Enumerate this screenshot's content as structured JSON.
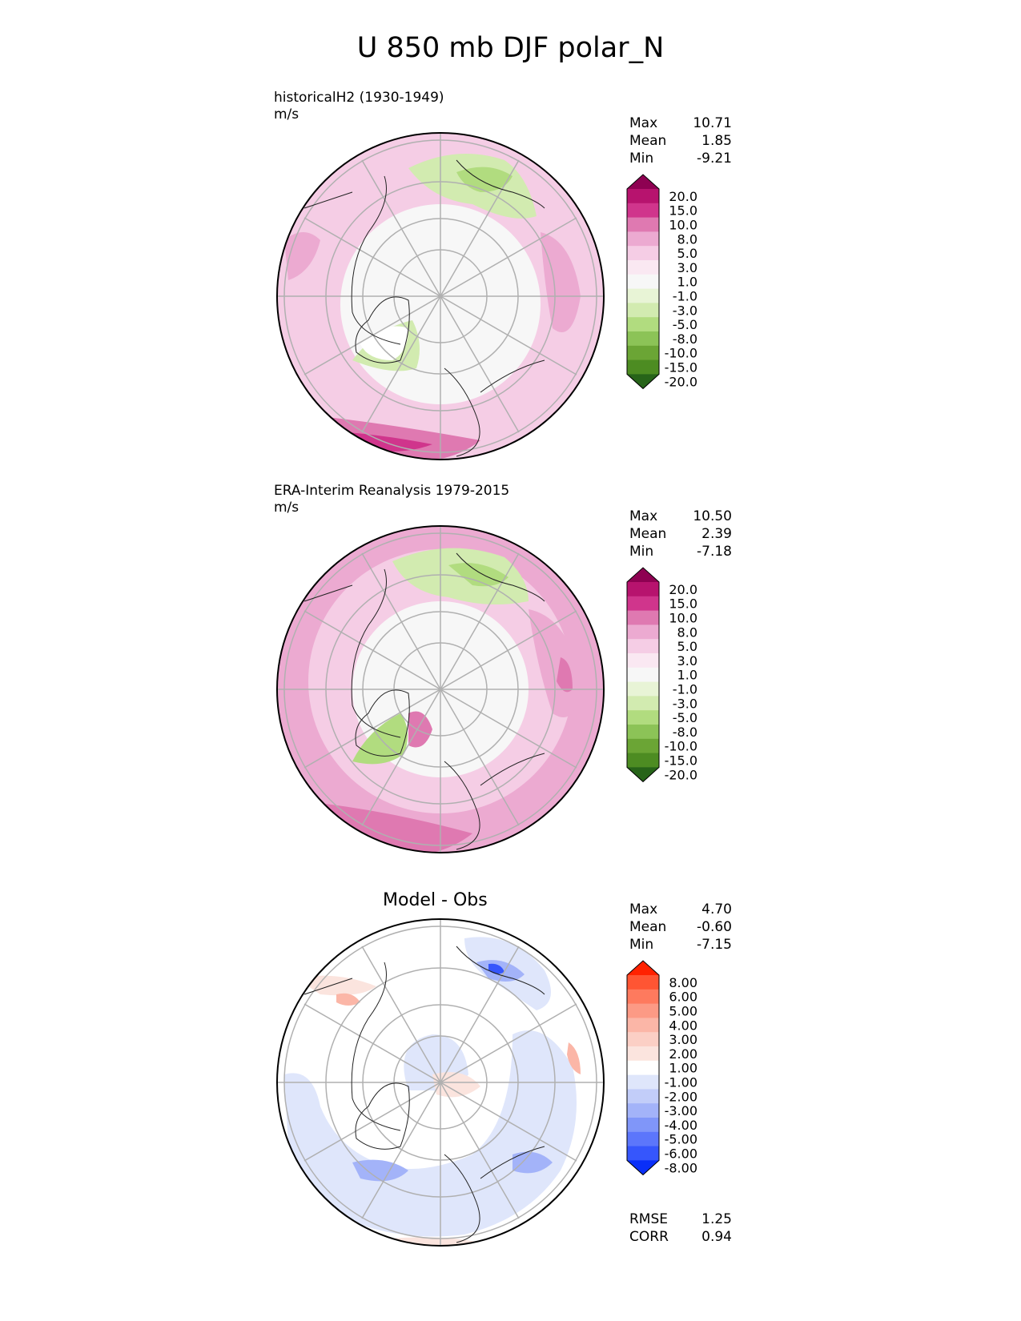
{
  "title": "U 850 mb DJF polar_N",
  "panels": [
    {
      "id": "test",
      "title_lines": [
        "historicalH2 (1930-1949)",
        "m/s"
      ],
      "stats": [
        {
          "label": "Max",
          "value": "10.71"
        },
        {
          "label": "Mean",
          "value": "1.85"
        },
        {
          "label": "Min",
          "value": "-9.21"
        }
      ],
      "colorbar": {
        "levels": [
          "20.0",
          "15.0",
          "10.0",
          "8.0",
          "5.0",
          "3.0",
          "1.0",
          "-1.0",
          "-3.0",
          "-5.0",
          "-8.0",
          "-10.0",
          "-15.0",
          "-20.0"
        ],
        "colors": [
          "#8e0152",
          "#b7136e",
          "#d0358c",
          "#df79b1",
          "#ecaad1",
          "#f5cde5",
          "#fae8f2",
          "#f7f7f7",
          "#e8f4d6",
          "#d2ebb0",
          "#b1dc7f",
          "#8cc357",
          "#6ba535",
          "#4d8c22",
          "#276419"
        ]
      }
    },
    {
      "id": "reference",
      "title_lines": [
        "ERA-Interim Reanalysis 1979-2015",
        "m/s"
      ],
      "stats": [
        {
          "label": "Max",
          "value": "10.50"
        },
        {
          "label": "Mean",
          "value": "2.39"
        },
        {
          "label": "Min",
          "value": "-7.18"
        }
      ],
      "colorbar": {
        "levels": [
          "20.0",
          "15.0",
          "10.0",
          "8.0",
          "5.0",
          "3.0",
          "1.0",
          "-1.0",
          "-3.0",
          "-5.0",
          "-8.0",
          "-10.0",
          "-15.0",
          "-20.0"
        ],
        "colors": [
          "#8e0152",
          "#b7136e",
          "#d0358c",
          "#df79b1",
          "#ecaad1",
          "#f5cde5",
          "#fae8f2",
          "#f7f7f7",
          "#e8f4d6",
          "#d2ebb0",
          "#b1dc7f",
          "#8cc357",
          "#6ba535",
          "#4d8c22",
          "#276419"
        ]
      }
    },
    {
      "id": "difference",
      "center_title": "Model - Obs",
      "stats": [
        {
          "label": "Max",
          "value": "4.70"
        },
        {
          "label": "Mean",
          "value": "-0.60"
        },
        {
          "label": "Min",
          "value": "-7.15"
        }
      ],
      "metrics": [
        {
          "label": "RMSE",
          "value": "1.25"
        },
        {
          "label": "CORR",
          "value": "0.94"
        }
      ],
      "colorbar": {
        "levels": [
          "8.00",
          "6.00",
          "5.00",
          "4.00",
          "3.00",
          "2.00",
          "1.00",
          "-1.00",
          "-2.00",
          "-3.00",
          "-4.00",
          "-5.00",
          "-6.00",
          "-8.00"
        ],
        "colors": [
          "#ff2200",
          "#ff5533",
          "#fe7a5e",
          "#fc9a85",
          "#fbb6a7",
          "#fbcfc5",
          "#fbe4de",
          "#ffffff",
          "#dfe6fb",
          "#c2cdf9",
          "#a3b3f9",
          "#8096f9",
          "#5c76fb",
          "#3656fc",
          "#0a2ff8"
        ]
      }
    }
  ],
  "chart_data": [
    {
      "type": "heatmap",
      "projection": "north polar stereographic",
      "title": "historicalH2 (1930-1949)",
      "units": "m/s",
      "stats": {
        "max": 10.71,
        "mean": 1.85,
        "min": -9.21
      },
      "levels": [
        -20,
        -15,
        -10,
        -8,
        -5,
        -3,
        -1,
        1,
        3,
        5,
        8,
        10,
        15,
        20
      ],
      "colormap": "PiYG (pink = positive, green = negative)"
    },
    {
      "type": "heatmap",
      "projection": "north polar stereographic",
      "title": "ERA-Interim Reanalysis 1979-2015",
      "units": "m/s",
      "stats": {
        "max": 10.5,
        "mean": 2.39,
        "min": -7.18
      },
      "levels": [
        -20,
        -15,
        -10,
        -8,
        -5,
        -3,
        -1,
        1,
        3,
        5,
        8,
        10,
        15,
        20
      ],
      "colormap": "PiYG (pink = positive, green = negative)"
    },
    {
      "type": "heatmap",
      "projection": "north polar stereographic",
      "title": "Model - Obs",
      "stats": {
        "max": 4.7,
        "mean": -0.6,
        "min": -7.15,
        "rmse": 1.25,
        "corr": 0.94
      },
      "levels": [
        -8,
        -6,
        -5,
        -4,
        -3,
        -2,
        -1,
        1,
        2,
        3,
        4,
        5,
        6,
        8
      ],
      "colormap": "bwr (red = positive, blue = negative)"
    }
  ]
}
